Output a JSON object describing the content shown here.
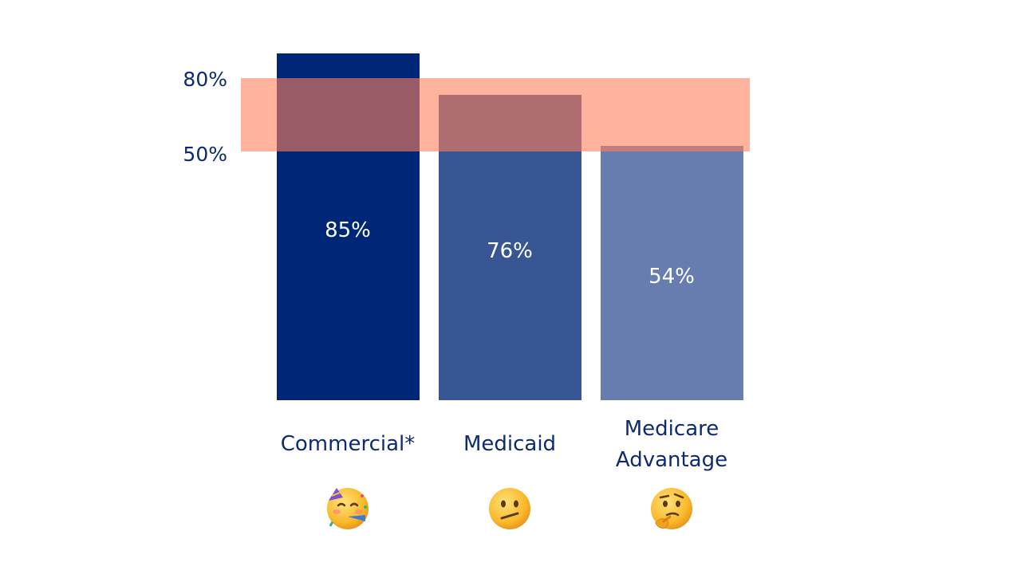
{
  "chart_data": {
    "type": "bar",
    "categories": [
      "Commercial*",
      "Medicaid",
      "Medicare\nAdvantage"
    ],
    "values": [
      85,
      76,
      54
    ],
    "value_labels": [
      "85%",
      "76%",
      "54%"
    ],
    "bar_colors": [
      "#002677",
      "#385594",
      "#677caf"
    ],
    "reference_band": {
      "range": [
        "50%",
        "80%"
      ],
      "color": "#ff7f5a"
    },
    "reactions": [
      "partying-face-emoji",
      "confused-face-emoji",
      "thinking-face-emoji"
    ],
    "grid": false,
    "legend": "none",
    "title": ""
  },
  "colors": {
    "label_text": "#0d2a72",
    "value_text": "#ffffff"
  }
}
